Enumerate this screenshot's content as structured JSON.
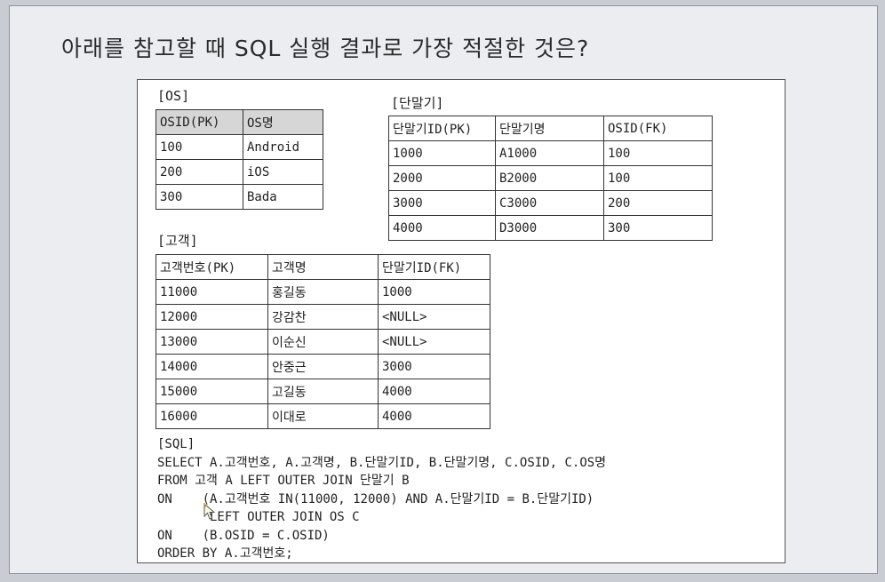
{
  "question": "아래를 참고할 때 SQL 실행 결과로 가장 적절한 것은?",
  "os_table": {
    "caption": "[OS]",
    "headers": [
      "OSID(PK)",
      "OS명"
    ],
    "rows": [
      [
        "100",
        "Android"
      ],
      [
        "200",
        "iOS"
      ],
      [
        "300",
        "Bada"
      ]
    ]
  },
  "device_table": {
    "caption": "[단말기]",
    "headers": [
      "단말기ID(PK)",
      "단말기명",
      "OSID(FK)"
    ],
    "rows": [
      [
        "1000",
        "A1000",
        "100"
      ],
      [
        "2000",
        "B2000",
        "100"
      ],
      [
        "3000",
        "C3000",
        "200"
      ],
      [
        "4000",
        "D3000",
        "300"
      ]
    ]
  },
  "customer_table": {
    "caption": "[고객]",
    "headers": [
      "고객번호(PK)",
      "고객명",
      "단말기ID(FK)"
    ],
    "rows": [
      [
        "11000",
        "홍길동",
        "1000"
      ],
      [
        "12000",
        "강감찬",
        "<NULL>"
      ],
      [
        "13000",
        "이순신",
        "<NULL>"
      ],
      [
        "14000",
        "안중근",
        "3000"
      ],
      [
        "15000",
        "고길동",
        "4000"
      ],
      [
        "16000",
        "이대로",
        "4000"
      ]
    ]
  },
  "sql": {
    "caption": "[SQL]",
    "lines": [
      "SELECT A.고객번호, A.고객명, B.단말기ID, B.단말기명, C.OSID, C.OS명",
      "FROM 고객 A LEFT OUTER JOIN 단말기 B",
      "ON    (A.고객번호 IN(11000, 12000) AND A.단말기ID = B.단말기ID)",
      "       LEFT OUTER JOIN OS C",
      "ON    (B.OSID = C.OSID)",
      "ORDER BY A.고객번호;"
    ]
  },
  "icons": {
    "cursor": "mouse-pointer-icon"
  }
}
